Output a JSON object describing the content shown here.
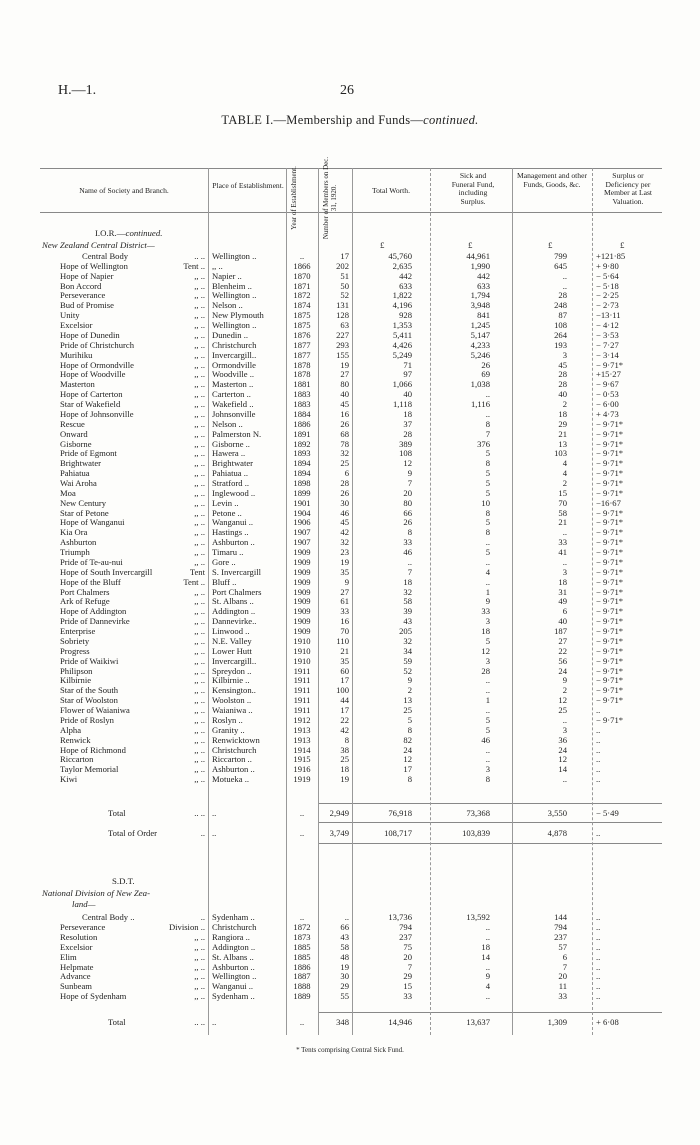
{
  "page": {
    "ref": "H.—1.",
    "number": "26"
  },
  "table": {
    "title_main": "TABLE I.—Membership and Funds—",
    "title_cont": "continued.",
    "headers": {
      "name": "Name of Society and Branch.",
      "place": "Place of Establishment.",
      "year": "Year of Establishment.",
      "members": "Number of Members on Dec. 31, 1920.",
      "worth": "Total Worth.",
      "sick": "Sick and Funeral Fund, including Surplus.",
      "mgmt": "Management and other Funds, Goods, &c.",
      "surplus": "Surplus or Deficiency per Member at Last Valuation."
    },
    "currency_symbol": "£",
    "ior": {
      "heading_main": "I.O.R.—",
      "heading_cont": "continued.",
      "district": "New Zealand Central District—",
      "rows": [
        [
          "Central Body",
          ".. ..",
          "Wellington ..",
          "..",
          "17",
          "45,760",
          "44,961",
          "799",
          "+121·85"
        ],
        [
          "Hope of Wellington",
          "Tent ..",
          ",, ..",
          "1866",
          "202",
          "2,635",
          "1,990",
          "645",
          "+ 9·80"
        ],
        [
          "Hope of Napier",
          ",, ..",
          "Napier ..",
          "1870",
          "51",
          "442",
          "442",
          "..",
          "− 5·64"
        ],
        [
          "Bon Accord",
          ",, ..",
          "Blenheim ..",
          "1871",
          "50",
          "633",
          "633",
          "..",
          "− 5·18"
        ],
        [
          "Perseverance",
          ",, ..",
          "Wellington ..",
          "1872",
          "52",
          "1,822",
          "1,794",
          "28",
          "− 2·25"
        ],
        [
          "Bud of Promise",
          ",, ..",
          "Nelson ..",
          "1874",
          "131",
          "4,196",
          "3,948",
          "248",
          "− 2·73"
        ],
        [
          "Unity",
          ",, ..",
          "New Plymouth",
          "1875",
          "128",
          "928",
          "841",
          "87",
          "−13·11"
        ],
        [
          "Excelsior",
          ",, ..",
          "Wellington ..",
          "1875",
          "63",
          "1,353",
          "1,245",
          "108",
          "− 4·12"
        ],
        [
          "Hope of Dunedin",
          ",, ..",
          "Dunedin ..",
          "1876",
          "227",
          "5,411",
          "5,147",
          "264",
          "− 3·53"
        ],
        [
          "Pride of Christchurch",
          ",, ..",
          "Christchurch",
          "1877",
          "293",
          "4,426",
          "4,233",
          "193",
          "− 7·27"
        ],
        [
          "Murihiku",
          ",, ..",
          "Invercargill..",
          "1877",
          "155",
          "5,249",
          "5,246",
          "3",
          "− 3·14"
        ],
        [
          "Hope of Ormondville",
          ",, ..",
          "Ormondville",
          "1878",
          "19",
          "71",
          "26",
          "45",
          "− 9·71*"
        ],
        [
          "Hope of Woodville",
          ",, ..",
          "Woodville ..",
          "1878",
          "27",
          "97",
          "69",
          "28",
          "+15·27"
        ],
        [
          "Masterton",
          ",, ..",
          "Masterton ..",
          "1881",
          "80",
          "1,066",
          "1,038",
          "28",
          "− 9·67"
        ],
        [
          "Hope of Carterton",
          ",, ..",
          "Carterton ..",
          "1883",
          "40",
          "40",
          "..",
          "40",
          "− 0·53"
        ],
        [
          "Star of Wakefield",
          ",, ..",
          "Wakefield ..",
          "1883",
          "45",
          "1,118",
          "1,116",
          "2",
          "− 6·00"
        ],
        [
          "Hope of Johnsonville",
          ",, ..",
          "Johnsonville",
          "1884",
          "16",
          "18",
          "..",
          "18",
          "+ 4·73"
        ],
        [
          "Rescue",
          ",, ..",
          "Nelson ..",
          "1886",
          "26",
          "37",
          "8",
          "29",
          "− 9·71*"
        ],
        [
          "Onward",
          ",, ..",
          "Palmerston N.",
          "1891",
          "68",
          "28",
          "7",
          "21",
          "− 9·71*"
        ],
        [
          "Gisborne",
          ",, ..",
          "Gisborne ..",
          "1892",
          "78",
          "389",
          "376",
          "13",
          "− 9·71*"
        ],
        [
          "Pride of Egmont",
          ",, ..",
          "Hawera ..",
          "1893",
          "32",
          "108",
          "5",
          "103",
          "− 9·71*"
        ],
        [
          "Brightwater",
          ",, ..",
          "Brightwater",
          "1894",
          "25",
          "12",
          "8",
          "4",
          "− 9·71*"
        ],
        [
          "Pahiatua",
          ",, ..",
          "Pahiatua ..",
          "1894",
          "6",
          "9",
          "5",
          "4",
          "− 9·71*"
        ],
        [
          "Wai Aroha",
          ",, ..",
          "Stratford ..",
          "1898",
          "28",
          "7",
          "5",
          "2",
          "− 9·71*"
        ],
        [
          "Moa",
          ",, ..",
          "Inglewood ..",
          "1899",
          "26",
          "20",
          "5",
          "15",
          "− 9·71*"
        ],
        [
          "New Century",
          ",, ..",
          "Levin ..",
          "1901",
          "30",
          "80",
          "10",
          "70",
          "−16·67"
        ],
        [
          "Star of Petone",
          ",, ..",
          "Petone ..",
          "1904",
          "46",
          "66",
          "8",
          "58",
          "− 9·71*"
        ],
        [
          "Hope of Wanganui",
          ",, ..",
          "Wanganui ..",
          "1906",
          "45",
          "26",
          "5",
          "21",
          "− 9·71*"
        ],
        [
          "Kia Ora",
          ",, ..",
          "Hastings ..",
          "1907",
          "42",
          "8",
          "8",
          "..",
          "− 9·71*"
        ],
        [
          "Ashburton",
          ",, ..",
          "Ashburton ..",
          "1907",
          "32",
          "33",
          "..",
          "33",
          "− 9·71*"
        ],
        [
          "Triumph",
          ",, ..",
          "Timaru ..",
          "1909",
          "23",
          "46",
          "5",
          "41",
          "− 9·71*"
        ],
        [
          "Pride of Te-au-nui",
          ",, ..",
          "Gore ..",
          "1909",
          "19",
          "..",
          "..",
          "..",
          "− 9·71*"
        ],
        [
          "Hope of South Invercargill",
          "Tent",
          "S. Invercargill",
          "1909",
          "35",
          "7",
          "4",
          "3",
          "− 9·71*"
        ],
        [
          "Hope of the Bluff",
          "Tent ..",
          "Bluff ..",
          "1909",
          "9",
          "18",
          "..",
          "18",
          "− 9·71*"
        ],
        [
          "Port Chalmers",
          ",, ..",
          "Port Chalmers",
          "1909",
          "27",
          "32",
          "1",
          "31",
          "− 9·71*"
        ],
        [
          "Ark of Refuge",
          ",, ..",
          "St. Albans ..",
          "1909",
          "61",
          "58",
          "9",
          "49",
          "− 9·71*"
        ],
        [
          "Hope of Addington",
          ",, ..",
          "Addington ..",
          "1909",
          "33",
          "39",
          "33",
          "6",
          "− 9·71*"
        ],
        [
          "Pride of Dannevirke",
          ",, ..",
          "Dannevirke..",
          "1909",
          "16",
          "43",
          "3",
          "40",
          "− 9·71*"
        ],
        [
          "Enterprise",
          ",, ..",
          "Linwood ..",
          "1909",
          "70",
          "205",
          "18",
          "187",
          "− 9·71*"
        ],
        [
          "Sobriety",
          ",, ..",
          "N.E. Valley",
          "1910",
          "110",
          "32",
          "5",
          "27",
          "− 9·71*"
        ],
        [
          "Progress",
          ",, ..",
          "Lower Hutt",
          "1910",
          "21",
          "34",
          "12",
          "22",
          "− 9·71*"
        ],
        [
          "Pride of Waikiwi",
          ",, ..",
          "Invercargill..",
          "1910",
          "35",
          "59",
          "3",
          "56",
          "− 9·71*"
        ],
        [
          "Philipson",
          ",, ..",
          "Spreydon ..",
          "1911",
          "60",
          "52",
          "28",
          "24",
          "− 9·71*"
        ],
        [
          "Kilbirnie",
          ",, ..",
          "Kilbirnie ..",
          "1911",
          "17",
          "9",
          "..",
          "9",
          "− 9·71*"
        ],
        [
          "Star of the South",
          ",, ..",
          "Kensington..",
          "1911",
          "100",
          "2",
          "..",
          "2",
          "− 9·71*"
        ],
        [
          "Star of Woolston",
          ",, ..",
          "Woolston ..",
          "1911",
          "44",
          "13",
          "1",
          "12",
          "− 9·71*"
        ],
        [
          "Flower of Waianiwa",
          ",, ..",
          "Waianiwa ..",
          "1911",
          "17",
          "25",
          "..",
          "25",
          ".."
        ],
        [
          "Pride of Roslyn",
          ",, ..",
          "Roslyn ..",
          "1912",
          "22",
          "5",
          "5",
          "..",
          "− 9·71*"
        ],
        [
          "Alpha",
          ",, ..",
          "Granity ..",
          "1913",
          "42",
          "8",
          "5",
          "3",
          ".."
        ],
        [
          "Renwick",
          ",, ..",
          "Renwicktown",
          "1913",
          "8",
          "82",
          "46",
          "36",
          ".."
        ],
        [
          "Hope of Richmond",
          ",, ..",
          "Christchurch",
          "1914",
          "38",
          "24",
          "..",
          "24",
          ".."
        ],
        [
          "Riccarton",
          ",, ..",
          "Riccarton ..",
          "1915",
          "25",
          "12",
          "..",
          "12",
          ".."
        ],
        [
          "Taylor Memorial",
          ",, ..",
          "Ashburton ..",
          "1916",
          "18",
          "17",
          "3",
          "14",
          ".."
        ],
        [
          "Kiwi",
          ",, ..",
          "Motueka ..",
          "1919",
          "19",
          "8",
          "8",
          "..",
          ".."
        ]
      ],
      "total": [
        "Total",
        ".. ..",
        "..",
        "..",
        "2,949",
        "76,918",
        "73,368",
        "3,550",
        "− 5·49"
      ],
      "total_order": [
        "Total of Order",
        "..",
        "..",
        "..",
        "3,749",
        "108,717",
        "103,839",
        "4,878",
        ".."
      ]
    },
    "sdt": {
      "heading": "S.D.T.",
      "division_line1": "National Division of New Zea-",
      "division_line2": "land—",
      "rows": [
        [
          "Central Body ..",
          "..",
          "Sydenham ..",
          "..",
          "..",
          "13,736",
          "13,592",
          "144",
          ".."
        ],
        [
          "Perseverance",
          "Division ..",
          "Christchurch",
          "1872",
          "66",
          "794",
          "..",
          "794",
          ".."
        ],
        [
          "Resolution",
          ",, ..",
          "Rangiora ..",
          "1873",
          "43",
          "237",
          "..",
          "237",
          ".."
        ],
        [
          "Excelsior",
          ",, ..",
          "Addington ..",
          "1885",
          "58",
          "75",
          "18",
          "57",
          ".."
        ],
        [
          "Elim",
          ",, ..",
          "St. Albans ..",
          "1885",
          "48",
          "20",
          "14",
          "6",
          ".."
        ],
        [
          "Helpmate",
          ",, ..",
          "Ashburton ..",
          "1886",
          "19",
          "7",
          "..",
          "7",
          ".."
        ],
        [
          "Advance",
          ",, ..",
          "Wellington ..",
          "1887",
          "30",
          "29",
          "9",
          "20",
          ".."
        ],
        [
          "Sunbeam",
          ",, ..",
          "Wanganui ..",
          "1888",
          "29",
          "15",
          "4",
          "11",
          ".."
        ],
        [
          "Hope of Sydenham",
          ",, ..",
          "Sydenham ..",
          "1889",
          "55",
          "33",
          "..",
          "33",
          ".."
        ]
      ],
      "total": [
        "Total",
        ".. ..",
        "..",
        "..",
        "348",
        "14,946",
        "13,637",
        "1,309",
        "+ 6·08"
      ]
    },
    "footnote": "* Tents comprising Central Sick Fund."
  }
}
